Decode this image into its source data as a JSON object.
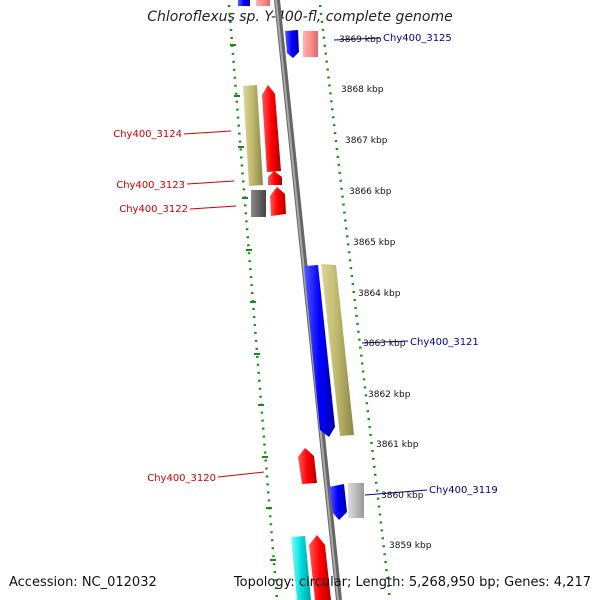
{
  "title": "Chloroflexus sp. Y-400-fl, complete genome",
  "footer": {
    "accession": "Accession: NC_012032",
    "summary": "Topology: circular; Length: 5,268,950 bp; Genes: 4,217"
  },
  "colors": {
    "dashed_border": "#1a8a1a",
    "backbone": "#888888",
    "label_red": "#cc0000",
    "label_blue": "#00009c",
    "gene_red": "#ff0000",
    "gene_blue": "#0000ff",
    "gene_khaki": "#bdb76b",
    "gene_grey": "#666666",
    "gene_lightgrey": "#bbbbbb",
    "gene_pink": "#ff8c8c",
    "gene_cyan": "#00dddd"
  },
  "scale_ticks": [
    "3869 kbp",
    "3868 kbp",
    "3867 kbp",
    "3866 kbp",
    "3865 kbp",
    "3864 kbp",
    "3863 kbp",
    "3862 kbp",
    "3861 kbp",
    "3860 kbp",
    "3859 kbp"
  ],
  "gene_labels": [
    {
      "text": "Chy400_3125",
      "side": "right"
    },
    {
      "text": "Chy400_3124",
      "side": "left"
    },
    {
      "text": "Chy400_3123",
      "side": "left"
    },
    {
      "text": "Chy400_3122",
      "side": "left"
    },
    {
      "text": "Chy400_3121",
      "side": "right"
    },
    {
      "text": "Chy400_3120",
      "side": "left"
    },
    {
      "text": "Chy400_3119",
      "side": "right"
    }
  ]
}
